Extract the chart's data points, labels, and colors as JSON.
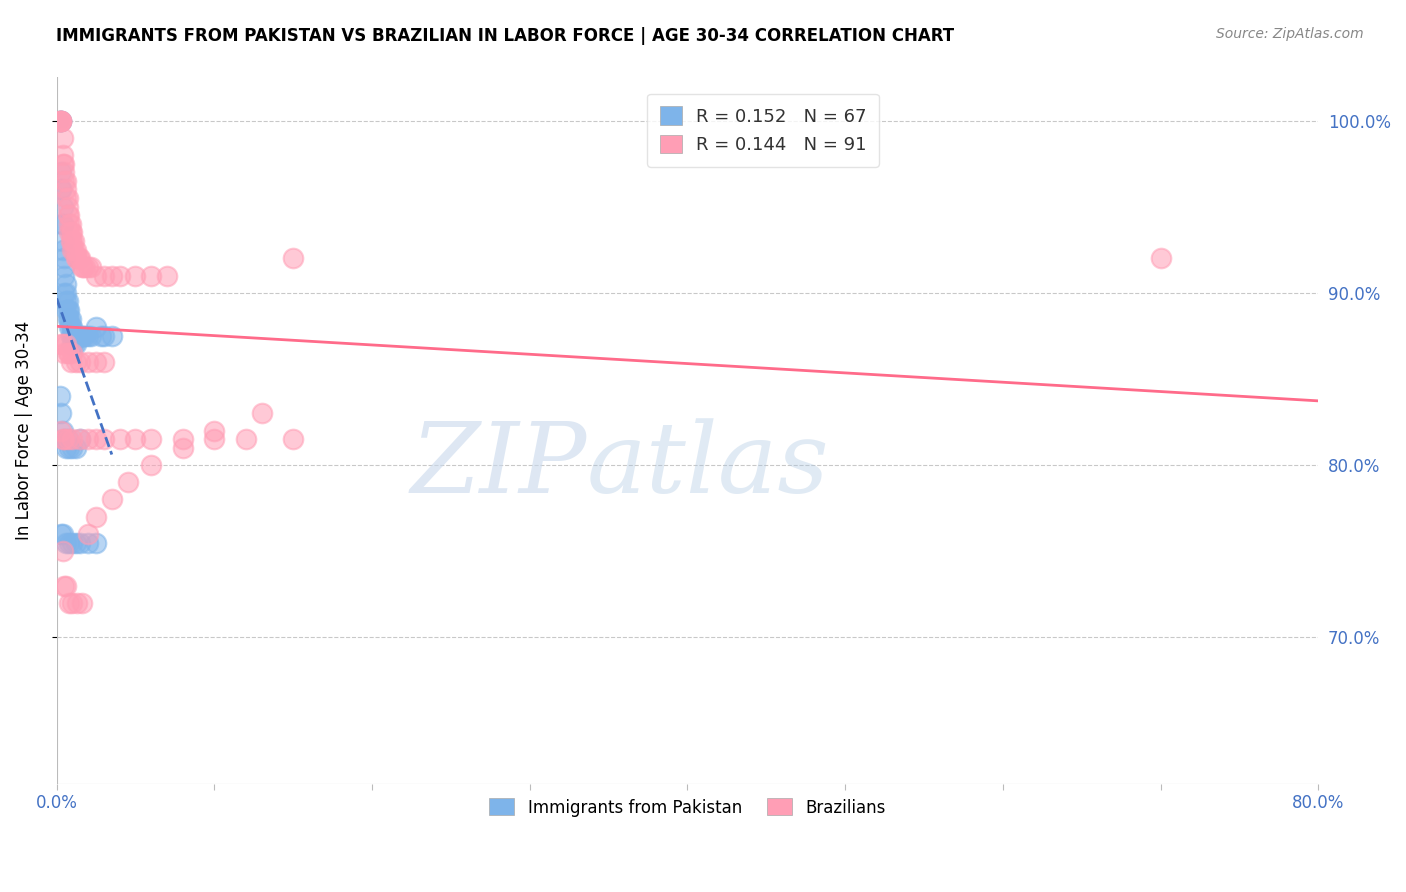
{
  "title": "IMMIGRANTS FROM PAKISTAN VS BRAZILIAN IN LABOR FORCE | AGE 30-34 CORRELATION CHART",
  "source": "Source: ZipAtlas.com",
  "ylabel": "In Labor Force | Age 30-34",
  "xlim": [
    0.0,
    0.8
  ],
  "ylim": [
    0.615,
    1.025
  ],
  "xticks": [
    0.0,
    0.1,
    0.2,
    0.3,
    0.4,
    0.5,
    0.6,
    0.7,
    0.8
  ],
  "xticklabels": [
    "0.0%",
    "",
    "",
    "",
    "",
    "",
    "",
    "",
    "80.0%"
  ],
  "yticks": [
    0.7,
    0.8,
    0.9,
    1.0
  ],
  "yticklabels": [
    "70.0%",
    "80.0%",
    "90.0%",
    "100.0%"
  ],
  "pakistan_color": "#7EB4EA",
  "brazil_color": "#FF9EB5",
  "pakistan_line_color": "#4472C4",
  "brazil_line_color": "#FF6B8A",
  "legend_R_pakistan": "0.152",
  "legend_N_pakistan": "67",
  "legend_R_brazil": "0.144",
  "legend_N_brazil": "91",
  "pakistan_x": [
    0.002,
    0.002,
    0.003,
    0.003,
    0.003,
    0.003,
    0.003,
    0.004,
    0.004,
    0.004,
    0.004,
    0.004,
    0.005,
    0.005,
    0.005,
    0.005,
    0.006,
    0.006,
    0.006,
    0.006,
    0.007,
    0.007,
    0.007,
    0.008,
    0.008,
    0.008,
    0.009,
    0.009,
    0.009,
    0.01,
    0.01,
    0.01,
    0.011,
    0.011,
    0.012,
    0.012,
    0.013,
    0.014,
    0.015,
    0.016,
    0.017,
    0.018,
    0.02,
    0.022,
    0.025,
    0.028,
    0.03,
    0.035,
    0.002,
    0.003,
    0.004,
    0.005,
    0.006,
    0.007,
    0.008,
    0.01,
    0.012,
    0.015,
    0.003,
    0.004,
    0.006,
    0.008,
    0.01,
    0.012,
    0.015,
    0.02,
    0.025
  ],
  "pakistan_y": [
    1.0,
    1.0,
    1.0,
    1.0,
    0.97,
    0.96,
    0.96,
    0.95,
    0.94,
    0.94,
    0.93,
    0.925,
    0.92,
    0.915,
    0.91,
    0.9,
    0.905,
    0.9,
    0.895,
    0.89,
    0.895,
    0.89,
    0.885,
    0.89,
    0.885,
    0.88,
    0.885,
    0.88,
    0.875,
    0.88,
    0.875,
    0.87,
    0.875,
    0.87,
    0.875,
    0.87,
    0.875,
    0.875,
    0.875,
    0.875,
    0.875,
    0.875,
    0.875,
    0.875,
    0.88,
    0.875,
    0.875,
    0.875,
    0.84,
    0.83,
    0.82,
    0.815,
    0.81,
    0.815,
    0.81,
    0.81,
    0.81,
    0.815,
    0.76,
    0.76,
    0.755,
    0.755,
    0.755,
    0.755,
    0.755,
    0.755,
    0.755
  ],
  "brazil_x": [
    0.002,
    0.002,
    0.003,
    0.003,
    0.003,
    0.004,
    0.004,
    0.004,
    0.005,
    0.005,
    0.005,
    0.006,
    0.006,
    0.006,
    0.007,
    0.007,
    0.007,
    0.008,
    0.008,
    0.008,
    0.009,
    0.009,
    0.009,
    0.01,
    0.01,
    0.01,
    0.011,
    0.011,
    0.012,
    0.012,
    0.013,
    0.014,
    0.015,
    0.016,
    0.017,
    0.018,
    0.02,
    0.022,
    0.025,
    0.03,
    0.035,
    0.04,
    0.05,
    0.06,
    0.07,
    0.15,
    0.003,
    0.004,
    0.005,
    0.006,
    0.007,
    0.008,
    0.009,
    0.01,
    0.012,
    0.015,
    0.02,
    0.025,
    0.03,
    0.003,
    0.004,
    0.005,
    0.007,
    0.01,
    0.015,
    0.02,
    0.025,
    0.03,
    0.04,
    0.05,
    0.06,
    0.08,
    0.1,
    0.12,
    0.15,
    0.7,
    0.004,
    0.005,
    0.006,
    0.008,
    0.01,
    0.013,
    0.016,
    0.02,
    0.025,
    0.035,
    0.045,
    0.06,
    0.08,
    0.1,
    0.13
  ],
  "brazil_y": [
    1.0,
    1.0,
    1.0,
    1.0,
    1.0,
    0.99,
    0.98,
    0.975,
    0.975,
    0.97,
    0.965,
    0.965,
    0.96,
    0.955,
    0.955,
    0.95,
    0.945,
    0.945,
    0.94,
    0.935,
    0.94,
    0.935,
    0.93,
    0.935,
    0.93,
    0.925,
    0.93,
    0.925,
    0.925,
    0.92,
    0.92,
    0.92,
    0.92,
    0.915,
    0.915,
    0.915,
    0.915,
    0.915,
    0.91,
    0.91,
    0.91,
    0.91,
    0.91,
    0.91,
    0.91,
    0.92,
    0.87,
    0.87,
    0.865,
    0.87,
    0.865,
    0.865,
    0.86,
    0.865,
    0.86,
    0.86,
    0.86,
    0.86,
    0.86,
    0.82,
    0.815,
    0.815,
    0.815,
    0.815,
    0.815,
    0.815,
    0.815,
    0.815,
    0.815,
    0.815,
    0.815,
    0.815,
    0.815,
    0.815,
    0.815,
    0.92,
    0.75,
    0.73,
    0.73,
    0.72,
    0.72,
    0.72,
    0.72,
    0.76,
    0.77,
    0.78,
    0.79,
    0.8,
    0.81,
    0.82,
    0.83
  ]
}
